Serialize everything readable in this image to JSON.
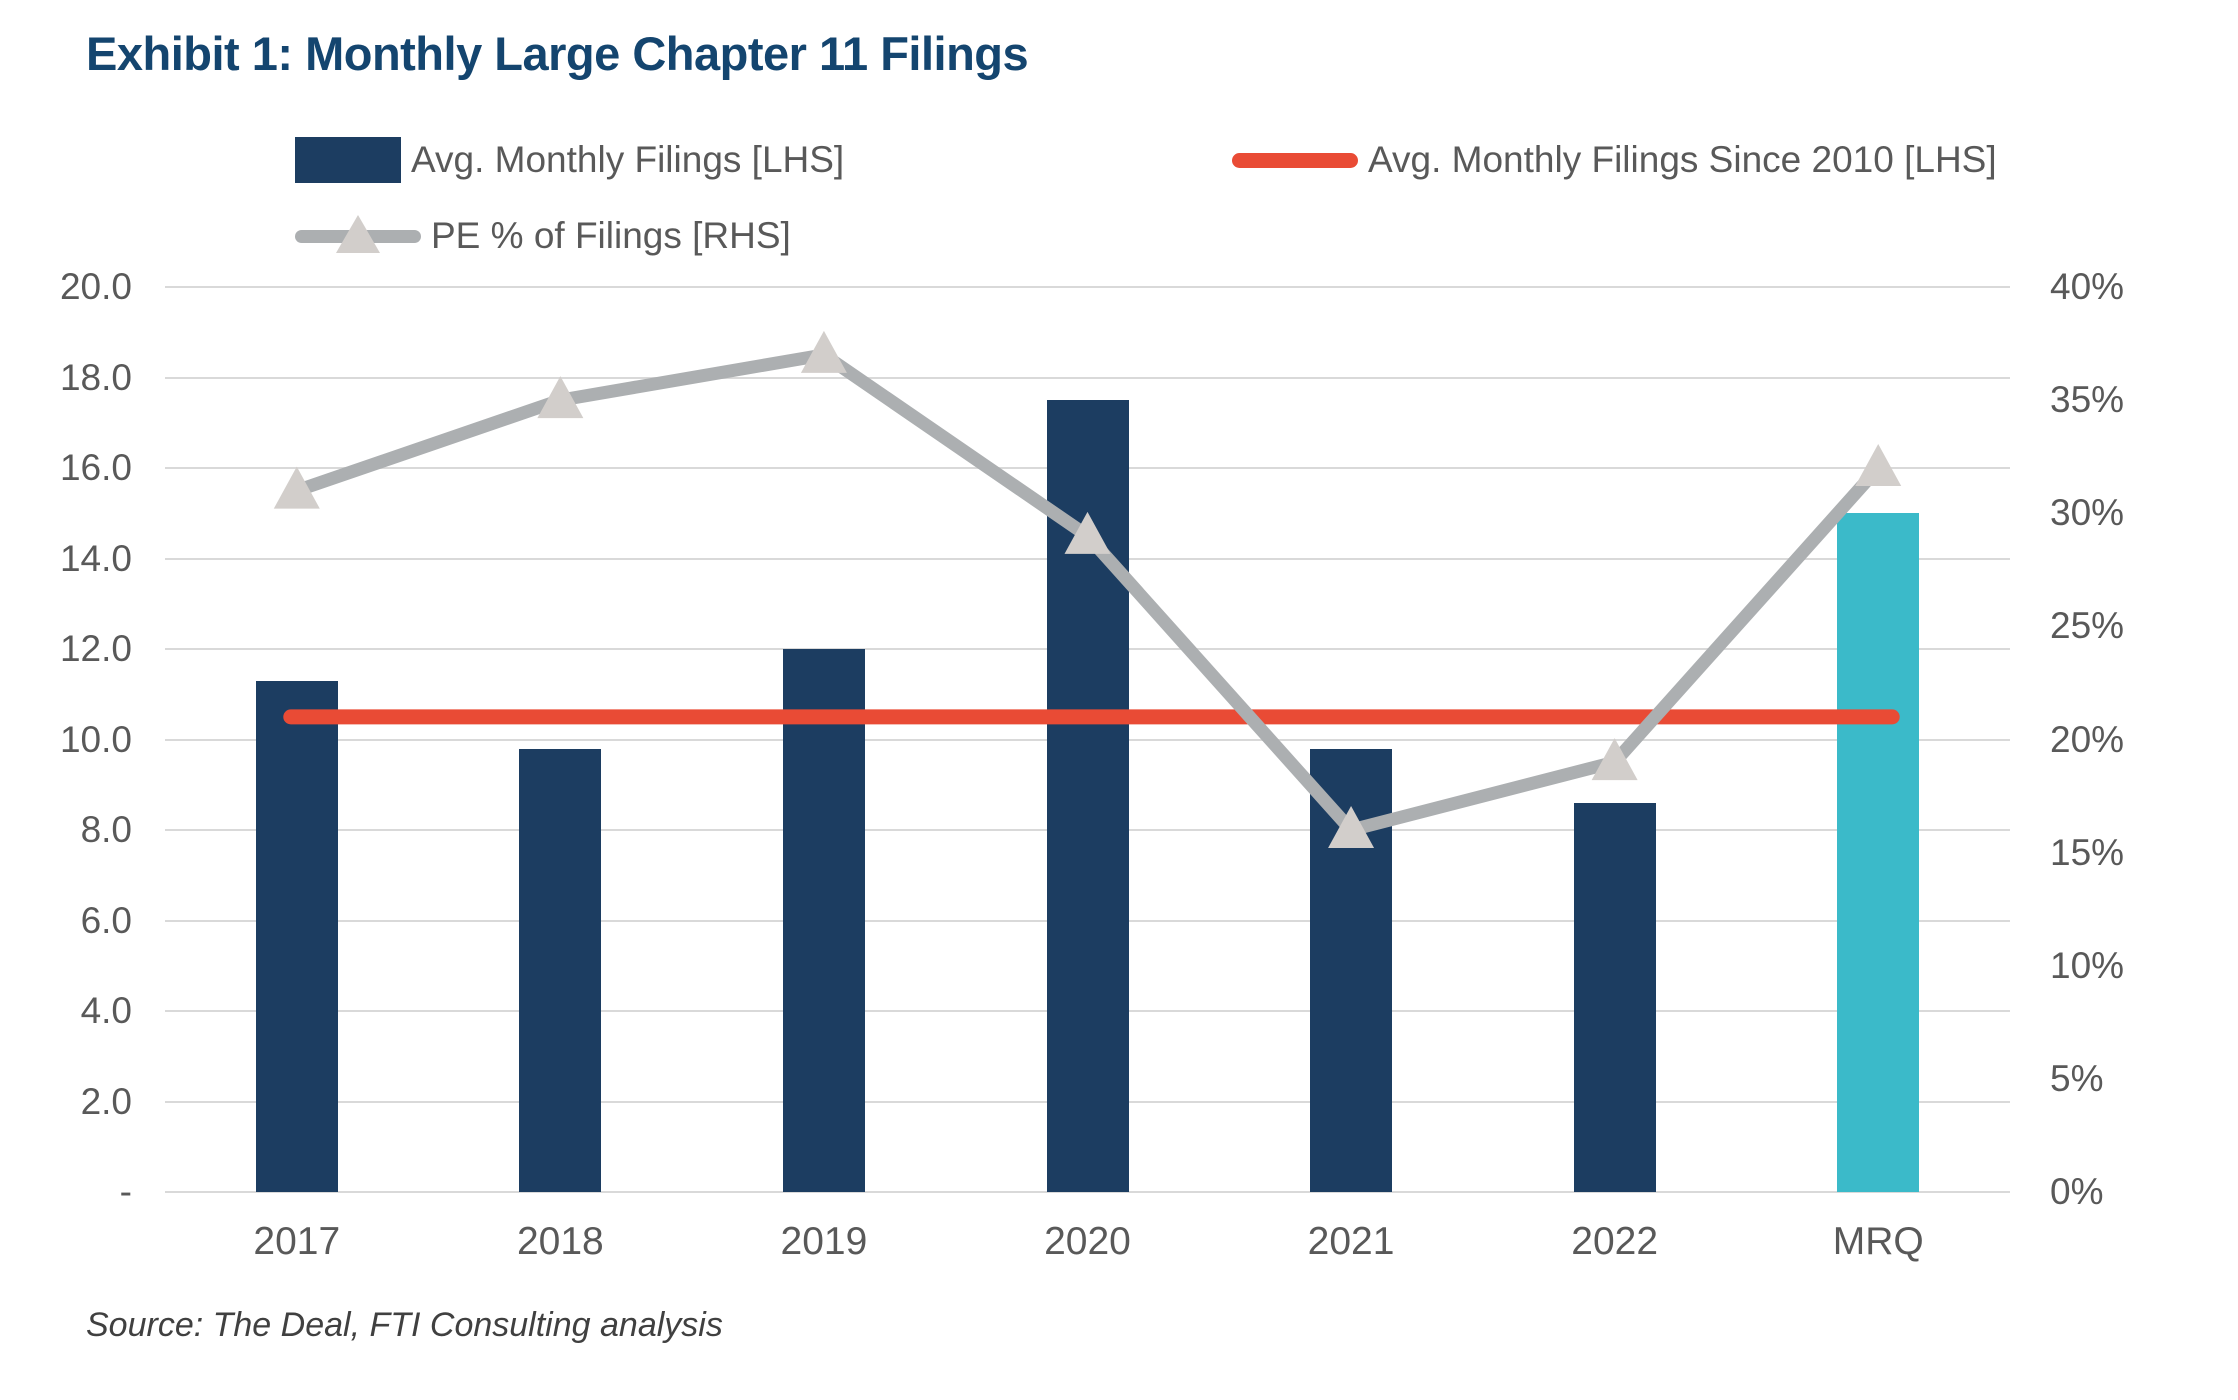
{
  "title": "Exhibit 1: Monthly Large Chapter 11 Filings",
  "source": "Source: The Deal, FTI Consulting analysis",
  "legend": [
    {
      "label": "Avg. Monthly Filings [LHS]",
      "marker": "bar-swatch",
      "color": "#1C3D61"
    },
    {
      "label": "Avg. Monthly Filings Since 2010 [LHS]",
      "marker": "line-swatch",
      "color": "#E94B35"
    },
    {
      "label": "PE % of Filings [RHS]",
      "marker": "line-triangle-swatch",
      "color": "#ACAFB1",
      "marker_color": "#D2CECB"
    }
  ],
  "colors": {
    "title": "#14456F",
    "axis_text": "#595959",
    "gridline": "#D9D9D9",
    "bar_navy": "#1C3D61",
    "bar_teal": "#3BBAC9",
    "avg_line_red": "#E94B35",
    "pe_line_gray": "#ACAFB1",
    "pe_marker_fill": "#D2CECB",
    "source_text": "#404040"
  },
  "chart_data": {
    "type": "bar+line combo",
    "title": "Exhibit 1: Monthly Large Chapter 11 Filings",
    "categories": [
      "2017",
      "2018",
      "2019",
      "2020",
      "2021",
      "2022",
      "MRQ"
    ],
    "series": [
      {
        "name": "Avg. Monthly Filings [LHS]",
        "type": "bar",
        "axis": "left",
        "values": [
          11.3,
          9.8,
          12.0,
          17.5,
          9.8,
          8.6,
          15.0
        ],
        "colors": [
          "#1C3D61",
          "#1C3D61",
          "#1C3D61",
          "#1C3D61",
          "#1C3D61",
          "#1C3D61",
          "#3BBAC9"
        ]
      },
      {
        "name": "Avg. Monthly Filings Since 2010 [LHS]",
        "type": "constant-line",
        "axis": "left",
        "value": 10.5,
        "color": "#E94B35"
      },
      {
        "name": "PE % of Filings [RHS]",
        "type": "line",
        "axis": "right",
        "values": [
          31,
          35,
          37,
          29,
          16,
          19,
          32
        ],
        "color": "#ACAFB1",
        "marker": "triangle",
        "marker_color": "#D2CECB"
      }
    ],
    "left_axis": {
      "min": 0,
      "max": 20,
      "tick_step": 2,
      "tick_labels": [
        "20.0",
        "18.0",
        "16.0",
        "14.0",
        "12.0",
        "10.0",
        "8.0",
        "6.0",
        "4.0",
        "2.0",
        "-"
      ]
    },
    "right_axis": {
      "min": 0,
      "max": 40,
      "tick_step": 5,
      "tick_labels": [
        "40%",
        "35%",
        "30%",
        "25%",
        "20%",
        "15%",
        "10%",
        "5%",
        "0%"
      ]
    },
    "grid": true,
    "legend_position": "top"
  }
}
